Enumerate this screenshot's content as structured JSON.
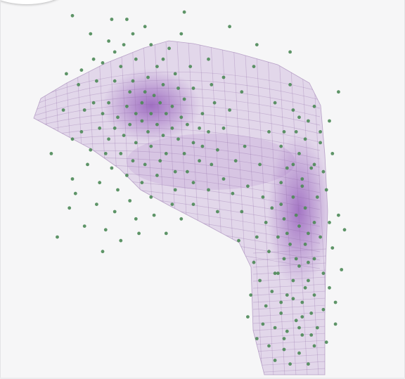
{
  "chart_data": {
    "type": "scatter",
    "title": "",
    "xlabel": "",
    "ylabel": "",
    "grid": false,
    "axes_visible": false,
    "colors": {
      "points": "#4c8a57",
      "surface_fill": "#9b6bbd",
      "surface_edge": "#8e6aa6",
      "background": "#f6f6f7"
    },
    "series": [
      {
        "values": [
          [
            0.1,
            0.98
          ],
          [
            0.23,
            0.97
          ],
          [
            0.47,
            0.99
          ],
          [
            0.62,
            0.95
          ],
          [
            0.24,
            0.88
          ],
          [
            0.17,
            0.86
          ],
          [
            0.08,
            0.82
          ],
          [
            0.46,
            0.93
          ],
          [
            0.71,
            0.9
          ],
          [
            0.82,
            0.88
          ],
          [
            0.22,
            0.91
          ],
          [
            0.27,
            0.9
          ],
          [
            0.3,
            0.93
          ],
          [
            0.36,
            0.9
          ],
          [
            0.42,
            0.89
          ],
          [
            0.38,
            0.84
          ],
          [
            0.31,
            0.86
          ],
          [
            0.26,
            0.84
          ],
          [
            0.2,
            0.85
          ],
          [
            0.13,
            0.83
          ],
          [
            0.12,
            0.79
          ],
          [
            0.18,
            0.8
          ],
          [
            0.24,
            0.8
          ],
          [
            0.3,
            0.8
          ],
          [
            0.35,
            0.81
          ],
          [
            0.4,
            0.79
          ],
          [
            0.45,
            0.78
          ],
          [
            0.5,
            0.78
          ],
          [
            0.56,
            0.79
          ],
          [
            0.29,
            0.77
          ],
          [
            0.34,
            0.77
          ],
          [
            0.37,
            0.76
          ],
          [
            0.33,
            0.74
          ],
          [
            0.39,
            0.74
          ],
          [
            0.43,
            0.73
          ],
          [
            0.28,
            0.73
          ],
          [
            0.22,
            0.74
          ],
          [
            0.17,
            0.74
          ],
          [
            0.14,
            0.72
          ],
          [
            0.2,
            0.71
          ],
          [
            0.25,
            0.7
          ],
          [
            0.31,
            0.71
          ],
          [
            0.36,
            0.71
          ],
          [
            0.41,
            0.71
          ],
          [
            0.46,
            0.7
          ],
          [
            0.33,
            0.69
          ],
          [
            0.38,
            0.68
          ],
          [
            0.29,
            0.68
          ],
          [
            0.24,
            0.67
          ],
          [
            0.19,
            0.67
          ],
          [
            0.43,
            0.67
          ],
          [
            0.48,
            0.68
          ],
          [
            0.52,
            0.67
          ],
          [
            0.35,
            0.66
          ],
          [
            0.4,
            0.65
          ],
          [
            0.27,
            0.65
          ],
          [
            0.22,
            0.64
          ],
          [
            0.31,
            0.63
          ],
          [
            0.36,
            0.62
          ],
          [
            0.45,
            0.64
          ],
          [
            0.5,
            0.63
          ],
          [
            0.55,
            0.66
          ],
          [
            0.6,
            0.67
          ],
          [
            0.16,
            0.61
          ],
          [
            0.21,
            0.6
          ],
          [
            0.26,
            0.6
          ],
          [
            0.3,
            0.58
          ],
          [
            0.34,
            0.57
          ],
          [
            0.41,
            0.6
          ],
          [
            0.47,
            0.6
          ],
          [
            0.53,
            0.62
          ],
          [
            0.13,
            0.66
          ],
          [
            0.1,
            0.64
          ],
          [
            0.15,
            0.57
          ],
          [
            0.23,
            0.56
          ],
          [
            0.28,
            0.54
          ],
          [
            0.33,
            0.52
          ],
          [
            0.38,
            0.54
          ],
          [
            0.19,
            0.52
          ],
          [
            0.25,
            0.5
          ],
          [
            0.1,
            0.53
          ],
          [
            0.29,
            0.47
          ],
          [
            0.36,
            0.48
          ],
          [
            0.44,
            0.5
          ],
          [
            0.18,
            0.46
          ],
          [
            0.24,
            0.44
          ],
          [
            0.31,
            0.42
          ],
          [
            0.37,
            0.43
          ],
          [
            0.43,
            0.46
          ],
          [
            0.39,
            0.58
          ],
          [
            0.44,
            0.55
          ],
          [
            0.5,
            0.52
          ],
          [
            0.56,
            0.57
          ],
          [
            0.58,
            0.61
          ],
          [
            0.52,
            0.58
          ],
          [
            0.48,
            0.55
          ],
          [
            0.5,
            0.46
          ],
          [
            0.55,
            0.5
          ],
          [
            0.6,
            0.53
          ],
          [
            0.64,
            0.58
          ],
          [
            0.46,
            0.42
          ],
          [
            0.41,
            0.38
          ],
          [
            0.32,
            0.38
          ],
          [
            0.26,
            0.36
          ],
          [
            0.21,
            0.39
          ],
          [
            0.09,
            0.45
          ],
          [
            0.14,
            0.4
          ],
          [
            0.05,
            0.37
          ],
          [
            0.63,
            0.49
          ],
          [
            0.58,
            0.44
          ],
          [
            0.7,
            0.84
          ],
          [
            0.77,
            0.74
          ],
          [
            0.83,
            0.72
          ],
          [
            0.88,
            0.69
          ],
          [
            0.84,
            0.66
          ],
          [
            0.79,
            0.62
          ],
          [
            0.85,
            0.6
          ],
          [
            0.81,
            0.56
          ],
          [
            0.86,
            0.53
          ],
          [
            0.9,
            0.57
          ],
          [
            0.92,
            0.63
          ],
          [
            0.95,
            0.69
          ],
          [
            0.9,
            0.73
          ],
          [
            0.98,
            0.77
          ],
          [
            0.96,
            0.6
          ],
          [
            0.79,
            0.52
          ],
          [
            0.83,
            0.48
          ],
          [
            0.87,
            0.45
          ],
          [
            0.91,
            0.48
          ],
          [
            0.94,
            0.5
          ],
          [
            0.98,
            0.43
          ],
          [
            0.95,
            0.41
          ],
          [
            0.9,
            0.41
          ],
          [
            0.85,
            0.4
          ],
          [
            0.8,
            0.42
          ],
          [
            0.76,
            0.45
          ],
          [
            0.73,
            0.48
          ],
          [
            0.74,
            0.41
          ],
          [
            0.78,
            0.37
          ],
          [
            0.82,
            0.35
          ],
          [
            0.87,
            0.35
          ],
          [
            0.92,
            0.37
          ],
          [
            0.96,
            0.34
          ],
          [
            0.9,
            0.31
          ],
          [
            0.85,
            0.29
          ],
          [
            0.8,
            0.31
          ],
          [
            0.75,
            0.33
          ],
          [
            0.71,
            0.37
          ],
          [
            0.7,
            0.3
          ],
          [
            0.77,
            0.27
          ],
          [
            0.83,
            0.25
          ],
          [
            0.88,
            0.25
          ],
          [
            0.93,
            0.27
          ],
          [
            0.95,
            0.23
          ],
          [
            0.9,
            0.21
          ],
          [
            0.86,
            0.19
          ],
          [
            0.81,
            0.21
          ],
          [
            0.76,
            0.22
          ],
          [
            0.72,
            0.25
          ],
          [
            0.74,
            0.18
          ],
          [
            0.79,
            0.16
          ],
          [
            0.84,
            0.14
          ],
          [
            0.89,
            0.16
          ],
          [
            0.93,
            0.17
          ],
          [
            0.97,
            0.19
          ],
          [
            0.91,
            0.12
          ],
          [
            0.86,
            0.1
          ],
          [
            0.81,
            0.11
          ],
          [
            0.77,
            0.12
          ],
          [
            0.73,
            0.13
          ],
          [
            0.75,
            0.07
          ],
          [
            0.8,
            0.06
          ],
          [
            0.85,
            0.05
          ],
          [
            0.9,
            0.07
          ],
          [
            0.94,
            0.08
          ],
          [
            0.88,
            0.02
          ],
          [
            0.82,
            0.02
          ],
          [
            0.77,
            0.03
          ],
          [
            0.71,
            0.09
          ],
          [
            0.68,
            0.15
          ],
          [
            0.69,
            0.21
          ],
          [
            0.97,
            0.13
          ],
          [
            0.99,
            0.28
          ],
          [
            1.0,
            0.39
          ],
          [
            0.93,
            0.55
          ],
          [
            0.87,
            0.64
          ],
          [
            0.82,
            0.79
          ],
          [
            0.75,
            0.66
          ],
          [
            0.72,
            0.57
          ],
          [
            0.68,
            0.51
          ],
          [
            0.66,
            0.44
          ],
          [
            0.65,
            0.36
          ],
          [
            0.67,
            0.62
          ],
          [
            0.62,
            0.72
          ],
          [
            0.57,
            0.74
          ],
          [
            0.53,
            0.71
          ],
          [
            0.47,
            0.75
          ],
          [
            0.4,
            0.86
          ],
          [
            0.34,
            0.95
          ],
          [
            0.28,
            0.97
          ],
          [
            0.6,
            0.81
          ],
          [
            0.66,
            0.77
          ],
          [
            0.55,
            0.86
          ],
          [
            0.49,
            0.84
          ],
          [
            0.44,
            0.82
          ],
          [
            0.16,
            0.93
          ],
          [
            0.07,
            0.72
          ],
          [
            0.03,
            0.6
          ],
          [
            0.11,
            0.49
          ],
          [
            0.2,
            0.33
          ],
          [
            0.81,
            0.38
          ],
          [
            0.84,
            0.43
          ],
          [
            0.88,
            0.38
          ],
          [
            0.79,
            0.46
          ],
          [
            0.86,
            0.51
          ],
          [
            0.89,
            0.56
          ],
          [
            0.83,
            0.57
          ],
          [
            0.8,
            0.66
          ],
          [
            0.85,
            0.7
          ],
          [
            0.92,
            0.66
          ],
          [
            0.78,
            0.27
          ],
          [
            0.84,
            0.31
          ],
          [
            0.88,
            0.3
          ],
          [
            0.83,
            0.2
          ],
          [
            0.87,
            0.23
          ],
          [
            0.79,
            0.19
          ],
          [
            0.86,
            0.15
          ],
          [
            0.8,
            0.09
          ],
          [
            0.85,
            0.12
          ],
          [
            0.89,
            0.1
          ]
        ]
      }
    ]
  }
}
